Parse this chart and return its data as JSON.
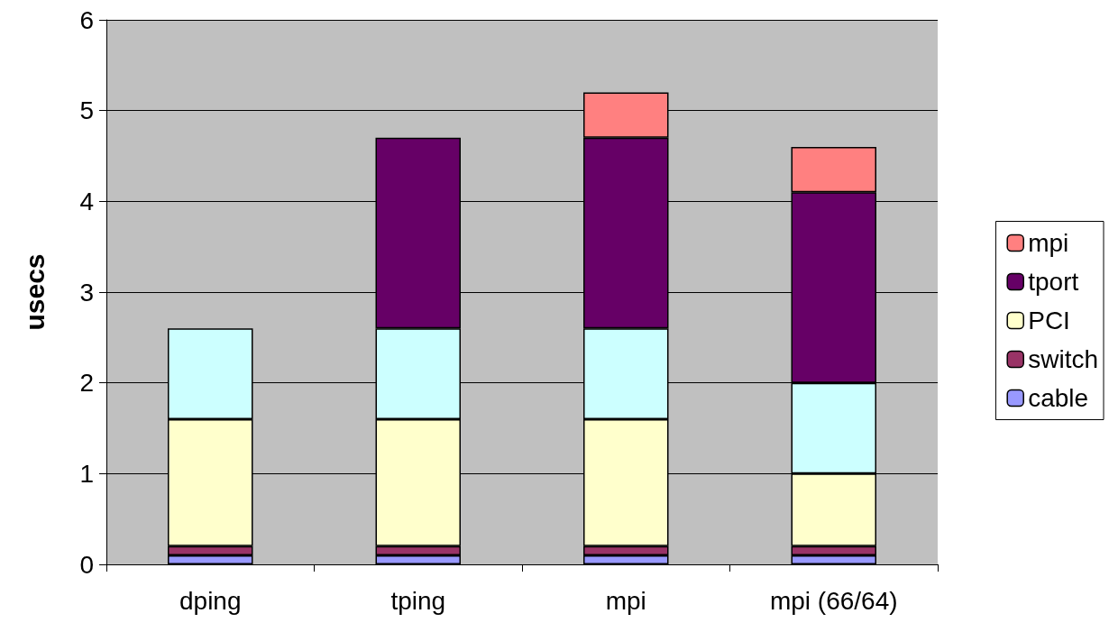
{
  "chart_data": {
    "type": "bar",
    "stacked": true,
    "ylabel": "usecs",
    "categories": [
      "dping",
      "tping",
      "mpi",
      "mpi (66/64)"
    ],
    "series": [
      {
        "name": "cable",
        "color": "#9999ff",
        "values": [
          0.1,
          0.1,
          0.1,
          0.1
        ]
      },
      {
        "name": "switch",
        "color": "#993366",
        "values": [
          0.1,
          0.1,
          0.1,
          0.1
        ]
      },
      {
        "name": "PCI",
        "color": "#ffffcc",
        "values": [
          1.4,
          1.4,
          1.4,
          0.8
        ]
      },
      {
        "color": "#ccffff",
        "values": [
          1.0,
          1.0,
          1.0,
          1.0
        ]
      },
      {
        "name": "tport",
        "color": "#660066",
        "values": [
          null,
          2.1,
          2.1,
          2.1
        ]
      },
      {
        "name": "mpi",
        "color": "#ff8080",
        "values": [
          null,
          null,
          0.5,
          0.5
        ]
      }
    ],
    "ylim": [
      0,
      6
    ],
    "yticks": [
      0,
      1,
      2,
      3,
      4,
      5,
      6
    ],
    "grid": "y",
    "legend": "right"
  }
}
